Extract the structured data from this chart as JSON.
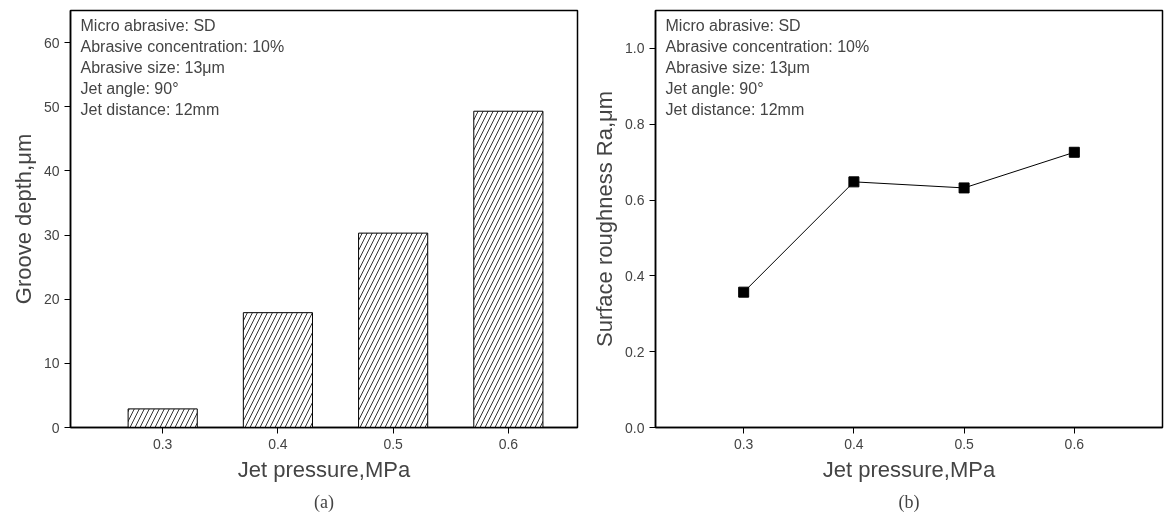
{
  "chart_data": [
    {
      "type": "bar",
      "x": [
        0.3,
        0.4,
        0.5,
        0.6
      ],
      "values": [
        2.9,
        17.9,
        30.3,
        49.3
      ],
      "color": "#ffffff",
      "xlabel": "Jet pressure,MPa",
      "ylabel": "Groove depth,μm",
      "xlim": [
        0.22,
        0.66
      ],
      "ylim": [
        0,
        65
      ],
      "xticks": [
        0.3,
        0.4,
        0.5,
        0.6
      ],
      "yticks": [
        0,
        10,
        20,
        30,
        40,
        50,
        60
      ],
      "grid": false,
      "annotations": [
        "Micro abrasive: SD\nAbrasive concentration: 10%\nAbrasive size: 13μm\nJet angle: 90°\nJet distance: 12mm",
        "(a)"
      ]
    },
    {
      "type": "line",
      "x": [
        0.3,
        0.4,
        0.5,
        0.6
      ],
      "values": [
        0.357,
        0.648,
        0.632,
        0.726
      ],
      "color": "#000000",
      "marker": "square",
      "line_style": "solid",
      "xlabel": "Jet pressure,MPa",
      "ylabel": "Surface roughness Ra,μm",
      "xlim": [
        0.22,
        0.68
      ],
      "ylim": [
        0,
        1.1
      ],
      "xticks": [
        0.3,
        0.4,
        0.5,
        0.6
      ],
      "yticks": [
        {
          "value": 0,
          "label": "0.0"
        },
        0.2,
        0.4,
        0.6,
        0.8,
        {
          "value": 1,
          "label": "1.0"
        }
      ],
      "grid": false,
      "annotations": [
        "Micro abrasive: SD\nAbrasive concentration: 10%\nAbrasive size: 13μm\nJet angle: 90°\nJet distance: 12mm",
        "(b)"
      ]
    }
  ]
}
